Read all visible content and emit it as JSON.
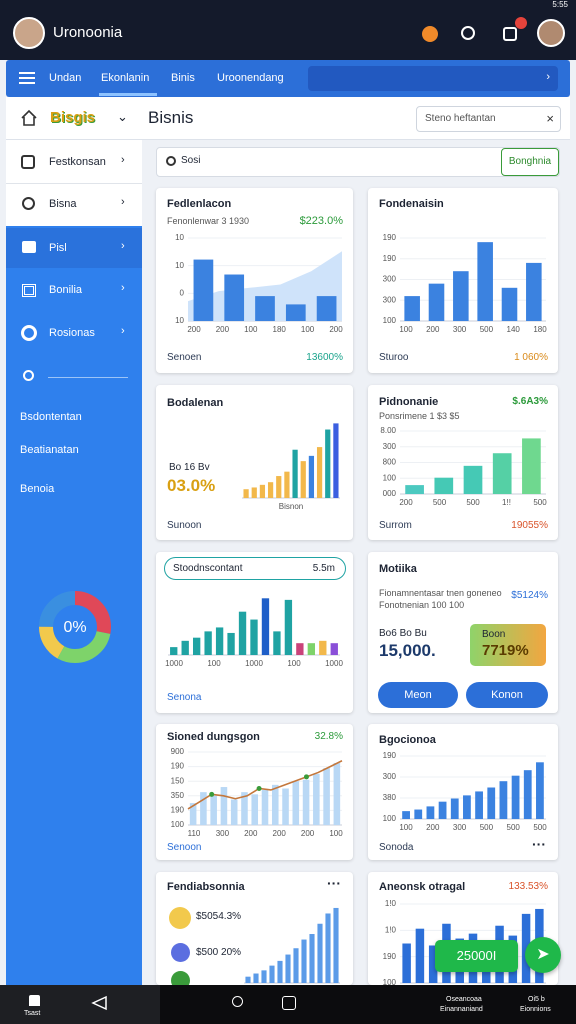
{
  "status": {
    "time": "5:55"
  },
  "topbar": {
    "title": "Uronoonia"
  },
  "nav": {
    "tabs": [
      "Undan",
      "Ekonlanin",
      "Binis",
      "Uroonendang"
    ]
  },
  "header": {
    "logo": "Bisgis",
    "title": "Bisnis",
    "search": "Steno heftantan"
  },
  "sidebar": {
    "items": [
      "Festkonsan",
      "Bisna",
      "Pisl",
      "Bonilia",
      "Rosionas"
    ],
    "links": [
      "Bsdontentan",
      "Beatianatan",
      "Benoia"
    ],
    "donut": {
      "label": "0%",
      "values": [
        28,
        30,
        17,
        25
      ],
      "colors": [
        "#e04858",
        "#7ed36a",
        "#f2c94c",
        "#3a8fe0"
      ]
    }
  },
  "search": {
    "placeholder": "Sosi",
    "button": "Bonghnia"
  },
  "cards": [
    {
      "title": "Fedlenlacon",
      "subtitle": "Fenonlenwar 3 1930",
      "value": "$223.0%",
      "footer": "Senoen",
      "footer_value": "13600%",
      "chart": {
        "type": "bar",
        "color": "#3b82e0",
        "values": [
          37,
          28,
          15,
          10,
          15
        ],
        "area": [
          12,
          18,
          20,
          22,
          30,
          42
        ],
        "area_color": "#cfe3fa",
        "ylim": [
          0,
          50
        ],
        "ylabels": [
          "10",
          "10",
          "0",
          "10"
        ],
        "xlabels": [
          "200",
          "200",
          "100",
          "180",
          "100",
          "200"
        ]
      }
    },
    {
      "title": "Fondenaisin",
      "footer": "Sturoo",
      "footer_value": "1 060%",
      "chart": {
        "type": "bar",
        "color": "#3b82e0",
        "values": [
          30,
          45,
          60,
          95,
          40,
          70
        ],
        "ylim": [
          0,
          100
        ],
        "ylabels": [
          "190",
          "190",
          "300",
          "300",
          "100"
        ],
        "xlabels": [
          "100",
          "200",
          "300",
          "500",
          "140",
          "180"
        ]
      }
    },
    {
      "title": "Bodalenan",
      "caption": "Bo 16 Bv",
      "value": "03.0%",
      "footer": "Sunoon",
      "chart": {
        "type": "bar",
        "color": "#f2b84b",
        "values": [
          10,
          12,
          15,
          18,
          25,
          30,
          55,
          42,
          48,
          58,
          78,
          85
        ],
        "colors": [
          "#f2b84b",
          "#f2b84b",
          "#f2b84b",
          "#f2b84b",
          "#f2b84b",
          "#f2b84b",
          "#1fa3a3",
          "#f2b84b",
          "#3b82e0",
          "#f2b84b",
          "#1fa3a3",
          "#3b5fe0"
        ],
        "ylim": [
          0,
          90
        ],
        "xlabels": [
          "Bisnon"
        ]
      }
    },
    {
      "title": "Pidnonanie",
      "subtitle": "Ponsrimene 1 $3 $5",
      "value": "$.6A3%",
      "footer": "Surrom",
      "footer_value": "19055%",
      "chart": {
        "type": "bar",
        "color": "#3ecfa3",
        "values": [
          12,
          22,
          38,
          55,
          75
        ],
        "colors": [
          "#4cc9c0",
          "#45c9b5",
          "#45c9b5",
          "#55d0a5",
          "#6fd88f"
        ],
        "ylim": [
          0,
          85
        ],
        "ylabels": [
          "8.00",
          "300",
          "800",
          "100",
          "000"
        ],
        "xlabels": [
          "200",
          "500",
          "500",
          "1!!",
          "500"
        ]
      }
    },
    {
      "pill": "Stoodnscontant",
      "pill_value": "5.5m",
      "footer": "Senona",
      "chart": {
        "type": "bar",
        "color": "#1fa3a3",
        "values": [
          10,
          18,
          22,
          30,
          35,
          28,
          55,
          45,
          72,
          30,
          70,
          15,
          15,
          18,
          15
        ],
        "colors": [
          "#1fa3a3",
          "#1fa3a3",
          "#1fa3a3",
          "#1fa3a3",
          "#1fa3a3",
          "#1fa3a3",
          "#1fa3a3",
          "#1fa3a3",
          "#1f5fc8",
          "#1fa3a3",
          "#1fa3a3",
          "#c9437a",
          "#7ed36a",
          "#f2b84b",
          "#8a4fd8"
        ],
        "ylim": [
          0,
          80
        ],
        "xlabels": [
          "1000",
          "100",
          "1000",
          "100",
          "1000"
        ]
      }
    },
    {
      "title": "Motiika",
      "subtitle": "Fionamnentasar tnen goneneo",
      "subtitle2": "Fonotnenian 100 100",
      "value": "$5124%",
      "caption": "Bo6 Bo Bu",
      "big": "15,000.",
      "badge_label": "Boon",
      "badge_value": "7719%",
      "buttons": [
        "Meon",
        "Konon"
      ]
    },
    {
      "title": "Sioned dungsgon",
      "value": "32.8%",
      "footer": "Senoon",
      "chart": {
        "type": "bar",
        "color": "#b9d8f5",
        "values": [
          30,
          45,
          40,
          52,
          35,
          45,
          42,
          48,
          55,
          50,
          60,
          62,
          70,
          78,
          85
        ],
        "line": [
          22,
          32,
          42,
          40,
          36,
          40,
          50,
          48,
          54,
          60,
          66,
          72,
          80,
          88
        ],
        "line_color": "#c4773b",
        "ylim": [
          0,
          100
        ],
        "ylabels": [
          "900",
          "190",
          "150",
          "350",
          "190",
          "100"
        ],
        "xlabels": [
          "110",
          "300",
          "200",
          "200",
          "200",
          "100"
        ]
      }
    },
    {
      "title": "Bgocionoa",
      "footer": "Sonoda",
      "chart": {
        "type": "bar",
        "color": "#3b82e0",
        "values": [
          10,
          12,
          16,
          22,
          26,
          30,
          35,
          40,
          48,
          55,
          62,
          72
        ],
        "ylim": [
          0,
          80
        ],
        "ylabels": [
          "190",
          "300",
          "380",
          "100"
        ],
        "xlabels": [
          "100",
          "200",
          "300",
          "500",
          "500",
          "500"
        ]
      }
    },
    {
      "title": "Fendiabsonnia",
      "items": [
        "$5054.3%",
        "$500 20%"
      ],
      "chart": {
        "type": "bar",
        "color": "#5b9be8",
        "values": [
          8,
          12,
          16,
          22,
          28,
          36,
          44,
          55,
          62,
          75,
          88,
          95
        ],
        "ylim": [
          0,
          100
        ]
      }
    },
    {
      "title": "Aneonsk otragal",
      "value": "133.53%",
      "action": "25000I",
      "chart": {
        "type": "bar",
        "color": "#2c6fd8",
        "values": [
          40,
          55,
          38,
          60,
          45,
          50,
          42,
          58,
          48,
          70,
          75
        ],
        "ylim": [
          0,
          80
        ],
        "ylabels": [
          "1!0",
          "1!0",
          "190",
          "100"
        ]
      }
    }
  ],
  "bottom": {
    "home": "Tsast",
    "right1": [
      "Oseancoaa",
      "Einannaniand"
    ],
    "right2": [
      "Oi5 b",
      "Eionnions"
    ]
  }
}
